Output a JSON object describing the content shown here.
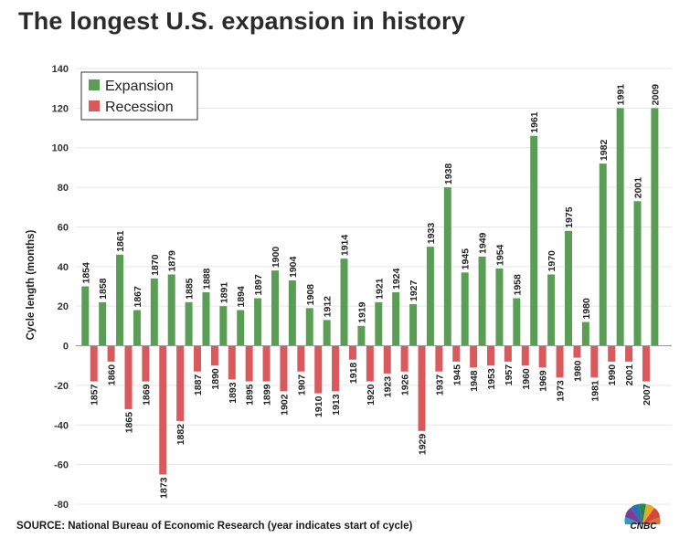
{
  "title": "The longest U.S. expansion in history",
  "source": "SOURCE: National Bureau of Economic Research (year indicates start of cycle)",
  "logo_text": "CNBC",
  "colors": {
    "expansion": "#5a9e55",
    "recession": "#d9595c",
    "grid": "#e6e6e6"
  },
  "chart_data": {
    "type": "bar",
    "title": "The longest U.S. expansion in history",
    "xlabel": "",
    "ylabel": "Cycle length (months)",
    "ylim": [
      -80,
      140
    ],
    "yticks": [
      140,
      120,
      100,
      80,
      60,
      40,
      20,
      0,
      -20,
      -40,
      -60,
      -80
    ],
    "grid": true,
    "legend_position": "top-left",
    "series": [
      {
        "name": "Expansion",
        "categories": [
          "1854",
          "1858",
          "1861",
          "1867",
          "1870",
          "1879",
          "1885",
          "1888",
          "1891",
          "1894",
          "1897",
          "1900",
          "1904",
          "1908",
          "1912",
          "1914",
          "1919",
          "1921",
          "1924",
          "1927",
          "1933",
          "1938",
          "1945",
          "1949",
          "1954",
          "1958",
          "1961",
          "1970",
          "1975",
          "1980",
          "1982",
          "1991",
          "2001",
          "2009"
        ],
        "values": [
          30,
          22,
          46,
          18,
          34,
          36,
          22,
          27,
          20,
          18,
          24,
          38,
          33,
          19,
          13,
          44,
          10,
          22,
          27,
          21,
          50,
          80,
          37,
          45,
          39,
          24,
          106,
          36,
          58,
          12,
          92,
          120,
          73,
          120
        ]
      },
      {
        "name": "Recession",
        "categories": [
          "1857",
          "1860",
          "1865",
          "1869",
          "1873",
          "1882",
          "1887",
          "1890",
          "1893",
          "1895",
          "1899",
          "1902",
          "1907",
          "1910",
          "1913",
          "1918",
          "1920",
          "1923",
          "1926",
          "1929",
          "1937",
          "1945",
          "1948",
          "1953",
          "1957",
          "1960",
          "1969",
          "1973",
          "1980",
          "1981",
          "1990",
          "2001",
          "2007"
        ],
        "values": [
          -18,
          -8,
          -32,
          -18,
          -65,
          -38,
          -13,
          -10,
          -17,
          -18,
          -18,
          -23,
          -13,
          -24,
          -23,
          -7,
          -18,
          -14,
          -13,
          -43,
          -13,
          -8,
          -11,
          -10,
          -8,
          -10,
          -11,
          -16,
          -6,
          -16,
          -8,
          -8,
          -18
        ]
      }
    ]
  }
}
